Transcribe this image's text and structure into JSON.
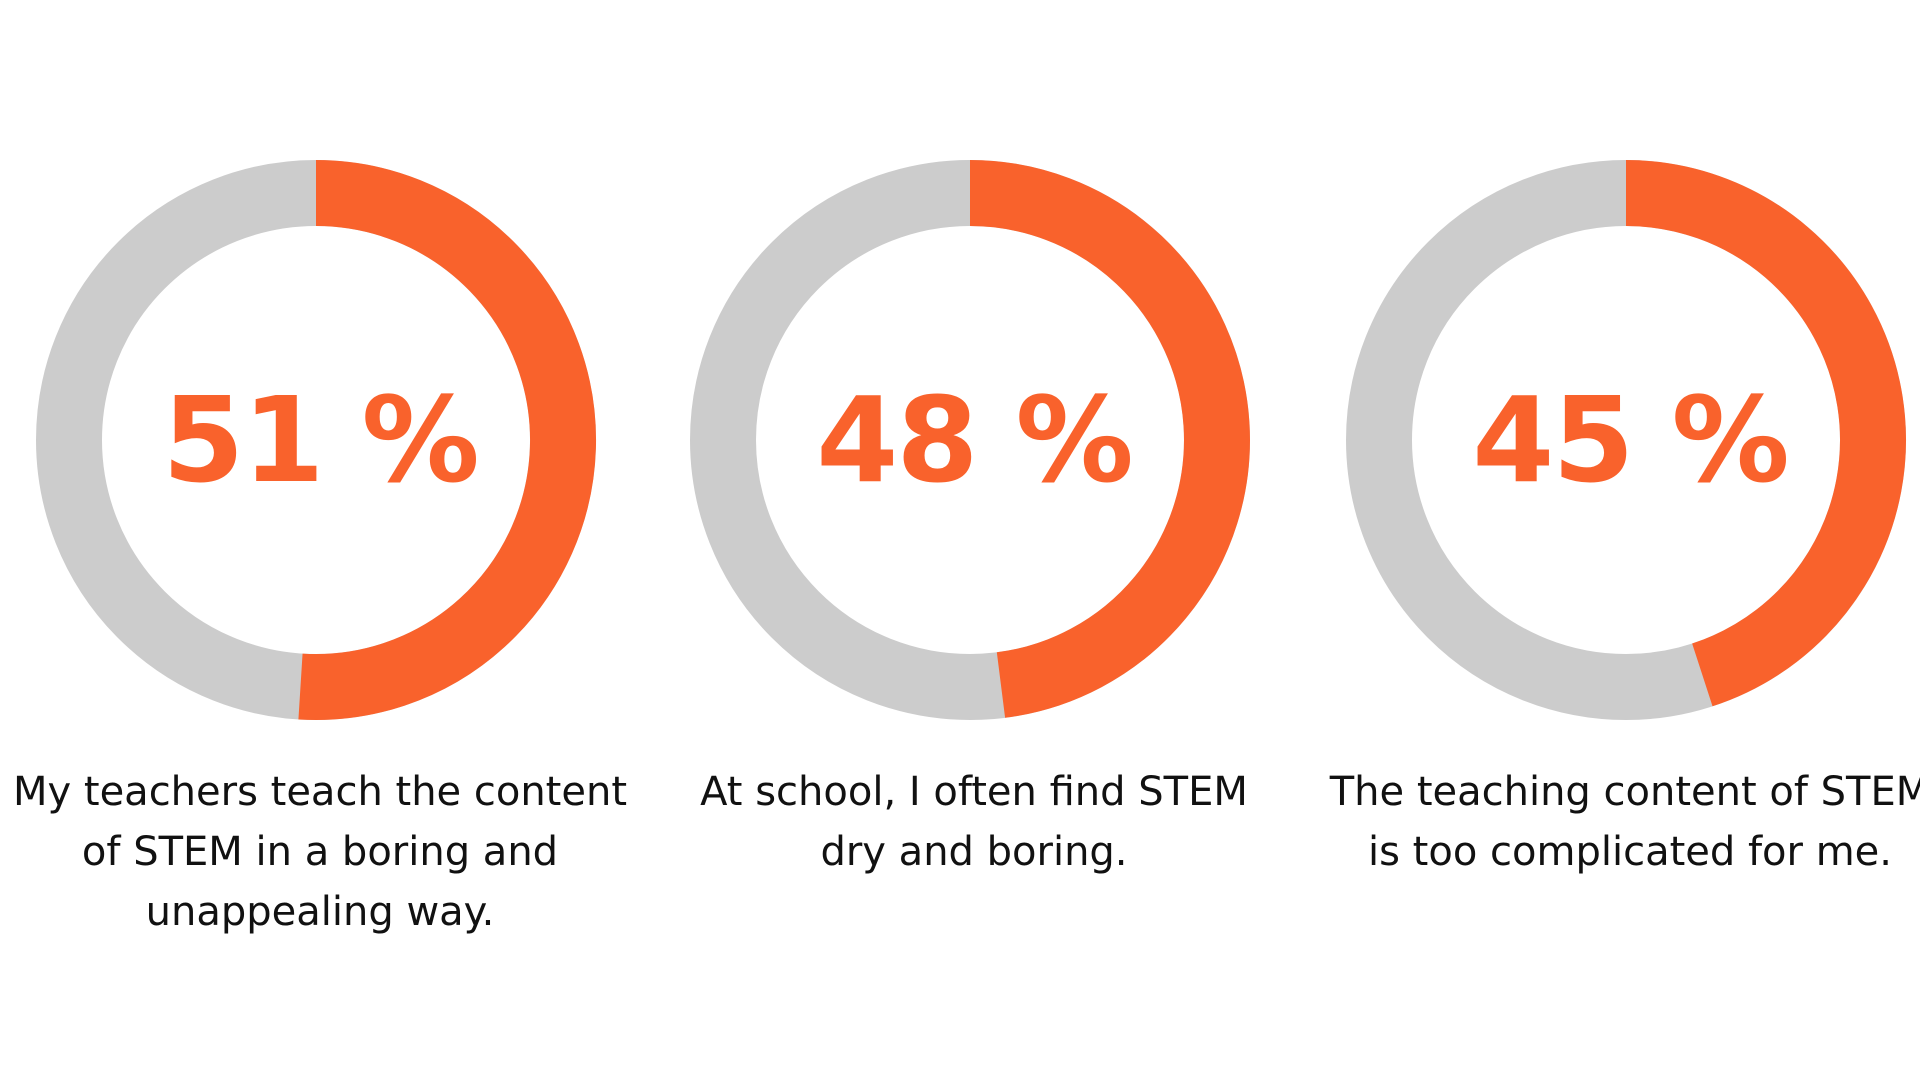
{
  "colors": {
    "accent": "#f9622c",
    "track": "#cccccc",
    "text": "#111111",
    "background": "#ffffff"
  },
  "chart_data": [
    {
      "type": "pie",
      "value": 51,
      "label": "51 %",
      "caption": "My teachers teach the content of STEM in a boring and unappealing way."
    },
    {
      "type": "pie",
      "value": 48,
      "label": "48 %",
      "caption": "At school, I often find STEM dry and boring."
    },
    {
      "type": "pie",
      "value": 45,
      "label": "45 %",
      "caption": "The teaching content of STEM is too complicated for me."
    }
  ]
}
